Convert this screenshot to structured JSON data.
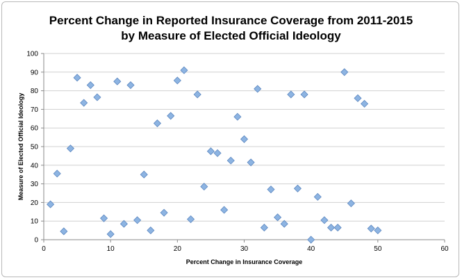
{
  "chart_data": {
    "type": "scatter",
    "title_line1": "Percent Change in Reported Insurance Coverage from 2011-2015",
    "title_line2": "by Measure of Elected Official Ideology",
    "xlabel": "Percent Change in Insurance Coverage",
    "ylabel": "Measure of Elected Official Ideology",
    "xlim": [
      0,
      60
    ],
    "ylim": [
      0,
      100
    ],
    "xticks": [
      0,
      10,
      20,
      30,
      40,
      50,
      60
    ],
    "yticks": [
      0,
      10,
      20,
      30,
      40,
      50,
      60,
      70,
      80,
      90,
      100
    ],
    "grid": "horizontal",
    "legend": "none",
    "marker_color": "#8db4e2",
    "marker_edge": "#5b86bf",
    "points": [
      {
        "x": 1,
        "y": 19
      },
      {
        "x": 2,
        "y": 35.5
      },
      {
        "x": 3,
        "y": 4.5
      },
      {
        "x": 4,
        "y": 49
      },
      {
        "x": 5,
        "y": 87
      },
      {
        "x": 6,
        "y": 73.5
      },
      {
        "x": 7,
        "y": 83
      },
      {
        "x": 8,
        "y": 76.5
      },
      {
        "x": 9,
        "y": 11.5
      },
      {
        "x": 10,
        "y": 3
      },
      {
        "x": 11,
        "y": 85
      },
      {
        "x": 12,
        "y": 8.5
      },
      {
        "x": 13,
        "y": 83
      },
      {
        "x": 14,
        "y": 10.5
      },
      {
        "x": 15,
        "y": 35
      },
      {
        "x": 16,
        "y": 5
      },
      {
        "x": 17,
        "y": 62.5
      },
      {
        "x": 18,
        "y": 14.5
      },
      {
        "x": 19,
        "y": 66.5
      },
      {
        "x": 20,
        "y": 85.5
      },
      {
        "x": 21,
        "y": 91
      },
      {
        "x": 22,
        "y": 11
      },
      {
        "x": 23,
        "y": 78
      },
      {
        "x": 24,
        "y": 28.5
      },
      {
        "x": 25,
        "y": 47.5
      },
      {
        "x": 26,
        "y": 46.5
      },
      {
        "x": 27,
        "y": 16
      },
      {
        "x": 28,
        "y": 42.5
      },
      {
        "x": 29,
        "y": 66
      },
      {
        "x": 30,
        "y": 54
      },
      {
        "x": 31,
        "y": 41.5
      },
      {
        "x": 32,
        "y": 81
      },
      {
        "x": 33,
        "y": 6.5
      },
      {
        "x": 34,
        "y": 27
      },
      {
        "x": 35,
        "y": 12
      },
      {
        "x": 36,
        "y": 8.5
      },
      {
        "x": 37,
        "y": 78
      },
      {
        "x": 38,
        "y": 27.5
      },
      {
        "x": 39,
        "y": 78
      },
      {
        "x": 40,
        "y": 0
      },
      {
        "x": 41,
        "y": 23
      },
      {
        "x": 42,
        "y": 10.5
      },
      {
        "x": 43,
        "y": 6.5
      },
      {
        "x": 44,
        "y": 6.5
      },
      {
        "x": 45,
        "y": 90
      },
      {
        "x": 46,
        "y": 19.5
      },
      {
        "x": 47,
        "y": 76
      },
      {
        "x": 48,
        "y": 73
      },
      {
        "x": 49,
        "y": 6
      },
      {
        "x": 50,
        "y": 5
      }
    ]
  }
}
